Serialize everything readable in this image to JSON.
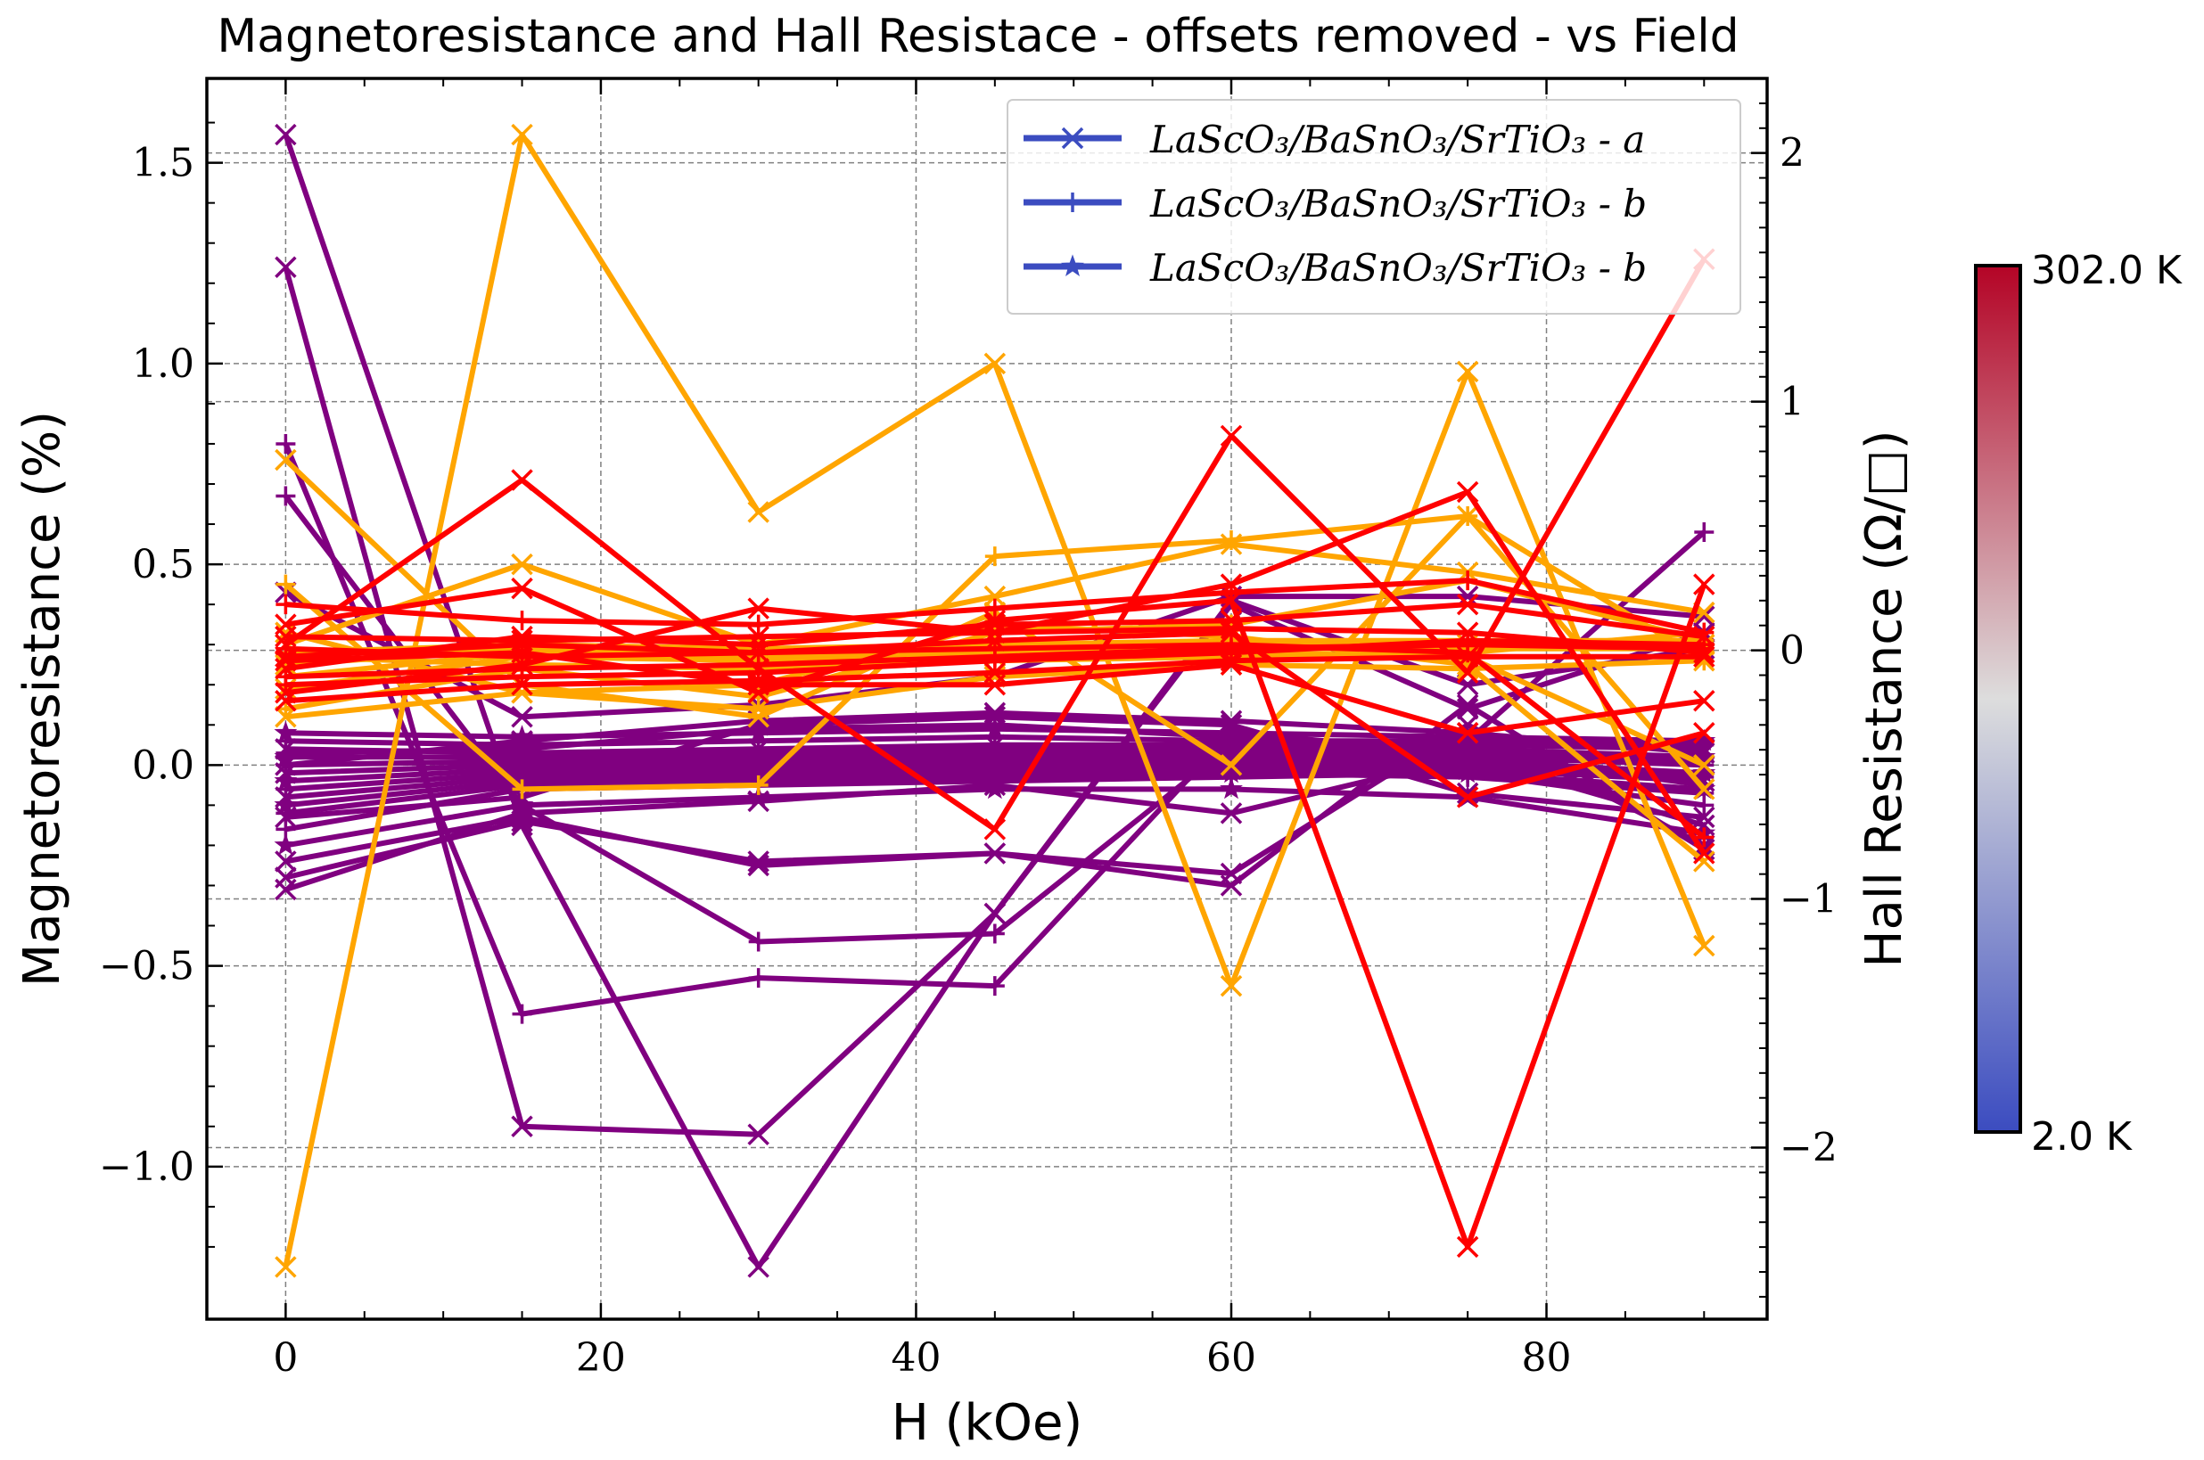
{
  "chart_data": {
    "type": "line",
    "title": "Magnetoresistance and Hall Resistace - offsets removed - vs Field",
    "xlabel": "H (kOe)",
    "ylabel": "Magnetoresistance (%)",
    "y2label": "Hall Resistance (Ω/□)",
    "xlim": [
      -5,
      94
    ],
    "ylim": [
      -1.38,
      1.71
    ],
    "y2lim": [
      -2.69,
      2.3
    ],
    "grid": true,
    "xticks": [
      {
        "v": 0,
        "label": "0"
      },
      {
        "v": 20,
        "label": "20"
      },
      {
        "v": 40,
        "label": "40"
      },
      {
        "v": 60,
        "label": "60"
      },
      {
        "v": 80,
        "label": "80"
      }
    ],
    "yticks": [
      {
        "v": 1.5,
        "label": "1.5"
      },
      {
        "v": 1.0,
        "label": "1.0"
      },
      {
        "v": 0.5,
        "label": "0.5"
      },
      {
        "v": 0.0,
        "label": "0.0"
      },
      {
        "v": -0.5,
        "label": "−0.5"
      },
      {
        "v": -1.0,
        "label": "−1.0"
      }
    ],
    "y2ticks": [
      {
        "v": 2,
        "label": "2"
      },
      {
        "v": 1,
        "label": "1"
      },
      {
        "v": 0,
        "label": "0"
      },
      {
        "v": -1,
        "label": "−1"
      },
      {
        "v": -2,
        "label": "−2"
      }
    ],
    "x": [
      0,
      15,
      30,
      45,
      60,
      75,
      90
    ],
    "legend": {
      "position": "top-right",
      "entries": [
        {
          "label": "LaScO₃/BaSnO₃/SrTiO₃ - a",
          "marker": "x",
          "color": "#3b4cc0"
        },
        {
          "label": "LaScO₃/BaSnO₃/SrTiO₃ - b",
          "marker": "+",
          "color": "#3b4cc0"
        },
        {
          "label": "LaScO₃/BaSnO₃/SrTiO₃ - b",
          "marker": "*",
          "color": "#3b4cc0"
        }
      ]
    },
    "colorbar": {
      "cmap": "coolwarm",
      "min_label": "2.0 K",
      "max_label": "302.0 K",
      "top_color": "#b40426",
      "mid_color": "#dddddd",
      "bottom_color": "#3b4cc0"
    },
    "series_colors": {
      "purple": "#800080",
      "red": "#ff0000",
      "orange": "#ffa500"
    },
    "series": [
      {
        "color": "purple",
        "marker": "x",
        "values": [
          1.57,
          -0.15,
          -1.25,
          -0.37,
          0.41,
          0.2,
          0.29
        ]
      },
      {
        "color": "purple",
        "marker": "x",
        "values": [
          1.24,
          -0.9,
          -0.92,
          -0.37,
          0.4,
          0.14,
          0.33
        ]
      },
      {
        "color": "purple",
        "marker": "+",
        "values": [
          0.8,
          -0.62,
          -0.53,
          -0.55,
          0.08,
          0.03,
          -0.05
        ]
      },
      {
        "color": "purple",
        "marker": "+",
        "values": [
          0.67,
          -0.1,
          -0.44,
          -0.42,
          0.05,
          0.06,
          0.58
        ]
      },
      {
        "color": "purple",
        "marker": "x",
        "values": [
          0.43,
          0.12,
          0.15,
          0.22,
          0.42,
          0.42,
          0.37
        ]
      },
      {
        "color": "purple",
        "marker": "x",
        "values": [
          -0.28,
          -0.14,
          -0.24,
          -0.22,
          -0.27,
          0.1,
          -0.2
        ]
      },
      {
        "color": "purple",
        "marker": "x",
        "values": [
          -0.31,
          -0.12,
          -0.09,
          -0.05,
          -0.12,
          0.02,
          -0.15
        ]
      },
      {
        "color": "purple",
        "marker": "*",
        "values": [
          -0.2,
          -0.1,
          -0.08,
          -0.06,
          -0.06,
          -0.08,
          -0.17
        ]
      },
      {
        "color": "purple",
        "marker": "x",
        "values": [
          -0.24,
          -0.13,
          -0.25,
          -0.22,
          -0.3,
          0.15,
          -0.21
        ]
      },
      {
        "color": "purple",
        "marker": "+",
        "values": [
          -0.16,
          -0.06,
          -0.05,
          -0.04,
          -0.03,
          -0.02,
          -0.1
        ]
      },
      {
        "color": "purple",
        "marker": "+",
        "values": [
          -0.12,
          -0.05,
          -0.04,
          -0.03,
          -0.02,
          -0.03,
          -0.07
        ]
      },
      {
        "color": "purple",
        "marker": "*",
        "values": [
          -0.1,
          -0.04,
          -0.03,
          -0.02,
          -0.02,
          -0.02,
          -0.06
        ]
      },
      {
        "color": "purple",
        "marker": "x",
        "values": [
          -0.08,
          -0.03,
          -0.02,
          -0.01,
          -0.01,
          -0.01,
          -0.04
        ]
      },
      {
        "color": "purple",
        "marker": "+",
        "values": [
          -0.06,
          -0.02,
          -0.01,
          0.0,
          0.0,
          0.0,
          -0.03
        ]
      },
      {
        "color": "purple",
        "marker": "*",
        "values": [
          -0.04,
          -0.01,
          0.0,
          0.01,
          0.01,
          0.01,
          -0.02
        ]
      },
      {
        "color": "purple",
        "marker": "x",
        "values": [
          -0.02,
          0.0,
          0.01,
          0.02,
          0.02,
          0.02,
          0.0
        ]
      },
      {
        "color": "purple",
        "marker": "+",
        "values": [
          0.0,
          0.01,
          0.02,
          0.03,
          0.03,
          0.03,
          0.01
        ]
      },
      {
        "color": "purple",
        "marker": "*",
        "values": [
          0.02,
          0.02,
          0.03,
          0.04,
          0.04,
          0.04,
          0.02
        ]
      },
      {
        "color": "purple",
        "marker": "x",
        "values": [
          0.04,
          0.03,
          0.04,
          0.05,
          0.05,
          0.05,
          0.04
        ]
      },
      {
        "color": "purple",
        "marker": "+",
        "values": [
          0.06,
          0.05,
          0.06,
          0.07,
          0.06,
          0.06,
          0.05
        ]
      },
      {
        "color": "purple",
        "marker": "*",
        "values": [
          0.08,
          0.07,
          0.08,
          0.09,
          0.08,
          0.07,
          0.06
        ]
      },
      {
        "color": "purple",
        "marker": "x",
        "values": [
          0.0,
          0.06,
          0.11,
          0.13,
          0.11,
          0.08,
          0.03
        ]
      },
      {
        "color": "purple",
        "marker": "+",
        "values": [
          0.03,
          0.04,
          0.09,
          0.1,
          0.07,
          0.04,
          0.0
        ]
      },
      {
        "color": "purple",
        "marker": "x",
        "values": [
          -0.13,
          -0.08,
          0.1,
          0.12,
          0.1,
          -0.07,
          -0.13
        ]
      },
      {
        "color": "orange",
        "marker": "x",
        "values": [
          -1.25,
          1.57,
          0.63,
          1.0,
          -0.55,
          0.98,
          -0.45
        ]
      },
      {
        "color": "orange",
        "marker": "x",
        "values": [
          0.76,
          0.2,
          0.12,
          0.38,
          0.0,
          0.62,
          -0.06
        ]
      },
      {
        "color": "orange",
        "marker": "+",
        "values": [
          0.45,
          -0.06,
          -0.05,
          0.52,
          0.56,
          0.62,
          0.26
        ]
      },
      {
        "color": "orange",
        "marker": "x",
        "values": [
          0.3,
          0.5,
          0.3,
          0.42,
          0.55,
          0.48,
          0.38
        ]
      },
      {
        "color": "orange",
        "marker": "+",
        "values": [
          0.14,
          0.24,
          0.17,
          0.33,
          0.35,
          0.46,
          0.31
        ]
      },
      {
        "color": "orange",
        "marker": "x",
        "values": [
          0.19,
          0.27,
          0.26,
          0.27,
          0.28,
          0.27,
          0.0
        ]
      },
      {
        "color": "orange",
        "marker": "+",
        "values": [
          0.22,
          0.28,
          0.27,
          0.28,
          0.29,
          0.29,
          0.29
        ]
      },
      {
        "color": "orange",
        "marker": "x",
        "values": [
          0.25,
          0.29,
          0.28,
          0.29,
          0.3,
          0.3,
          0.3
        ]
      },
      {
        "color": "orange",
        "marker": "+",
        "values": [
          0.28,
          0.3,
          0.29,
          0.3,
          0.31,
          0.31,
          0.31
        ]
      },
      {
        "color": "orange",
        "marker": "x",
        "values": [
          0.12,
          0.18,
          0.14,
          0.22,
          0.25,
          0.24,
          0.26
        ]
      },
      {
        "color": "orange",
        "marker": "x",
        "values": [
          0.33,
          0.18,
          0.2,
          0.35,
          0.32,
          0.25,
          -0.24
        ]
      },
      {
        "color": "orange",
        "marker": "+",
        "values": [
          0.27,
          0.25,
          0.24,
          0.26,
          0.27,
          0.28,
          0.33
        ]
      },
      {
        "color": "red",
        "marker": "x",
        "values": [
          0.3,
          0.71,
          0.24,
          -0.16,
          0.82,
          0.23,
          1.26
        ]
      },
      {
        "color": "red",
        "marker": "x",
        "values": [
          0.18,
          0.25,
          0.39,
          0.33,
          0.45,
          0.68,
          -0.22
        ]
      },
      {
        "color": "red",
        "marker": "x",
        "values": [
          0.35,
          0.44,
          0.18,
          0.36,
          0.41,
          -1.2,
          0.45
        ]
      },
      {
        "color": "red",
        "marker": "+",
        "values": [
          0.4,
          0.36,
          0.35,
          0.39,
          0.43,
          0.46,
          0.33
        ]
      },
      {
        "color": "red",
        "marker": "x",
        "values": [
          0.24,
          0.32,
          0.3,
          0.35,
          0.36,
          0.4,
          0.32
        ]
      },
      {
        "color": "red",
        "marker": "+",
        "values": [
          0.2,
          0.22,
          0.23,
          0.26,
          0.28,
          0.31,
          0.3
        ]
      },
      {
        "color": "red",
        "marker": "x",
        "values": [
          0.26,
          0.28,
          0.2,
          0.2,
          0.25,
          0.08,
          0.16
        ]
      },
      {
        "color": "red",
        "marker": "+",
        "values": [
          0.22,
          0.24,
          0.25,
          0.27,
          0.29,
          0.3,
          0.29
        ]
      },
      {
        "color": "red",
        "marker": "x",
        "values": [
          0.16,
          0.2,
          0.21,
          0.23,
          0.26,
          0.27,
          0.27
        ]
      },
      {
        "color": "red",
        "marker": "x",
        "values": [
          0.32,
          0.31,
          0.32,
          0.33,
          0.34,
          0.33,
          0.28
        ]
      },
      {
        "color": "red",
        "marker": "x",
        "values": [
          0.27,
          0.3,
          0.28,
          0.31,
          0.33,
          -0.08,
          0.08
        ]
      },
      {
        "color": "red",
        "marker": "+",
        "values": [
          0.29,
          0.27,
          0.28,
          0.29,
          0.3,
          0.28,
          -0.18
        ]
      }
    ]
  }
}
